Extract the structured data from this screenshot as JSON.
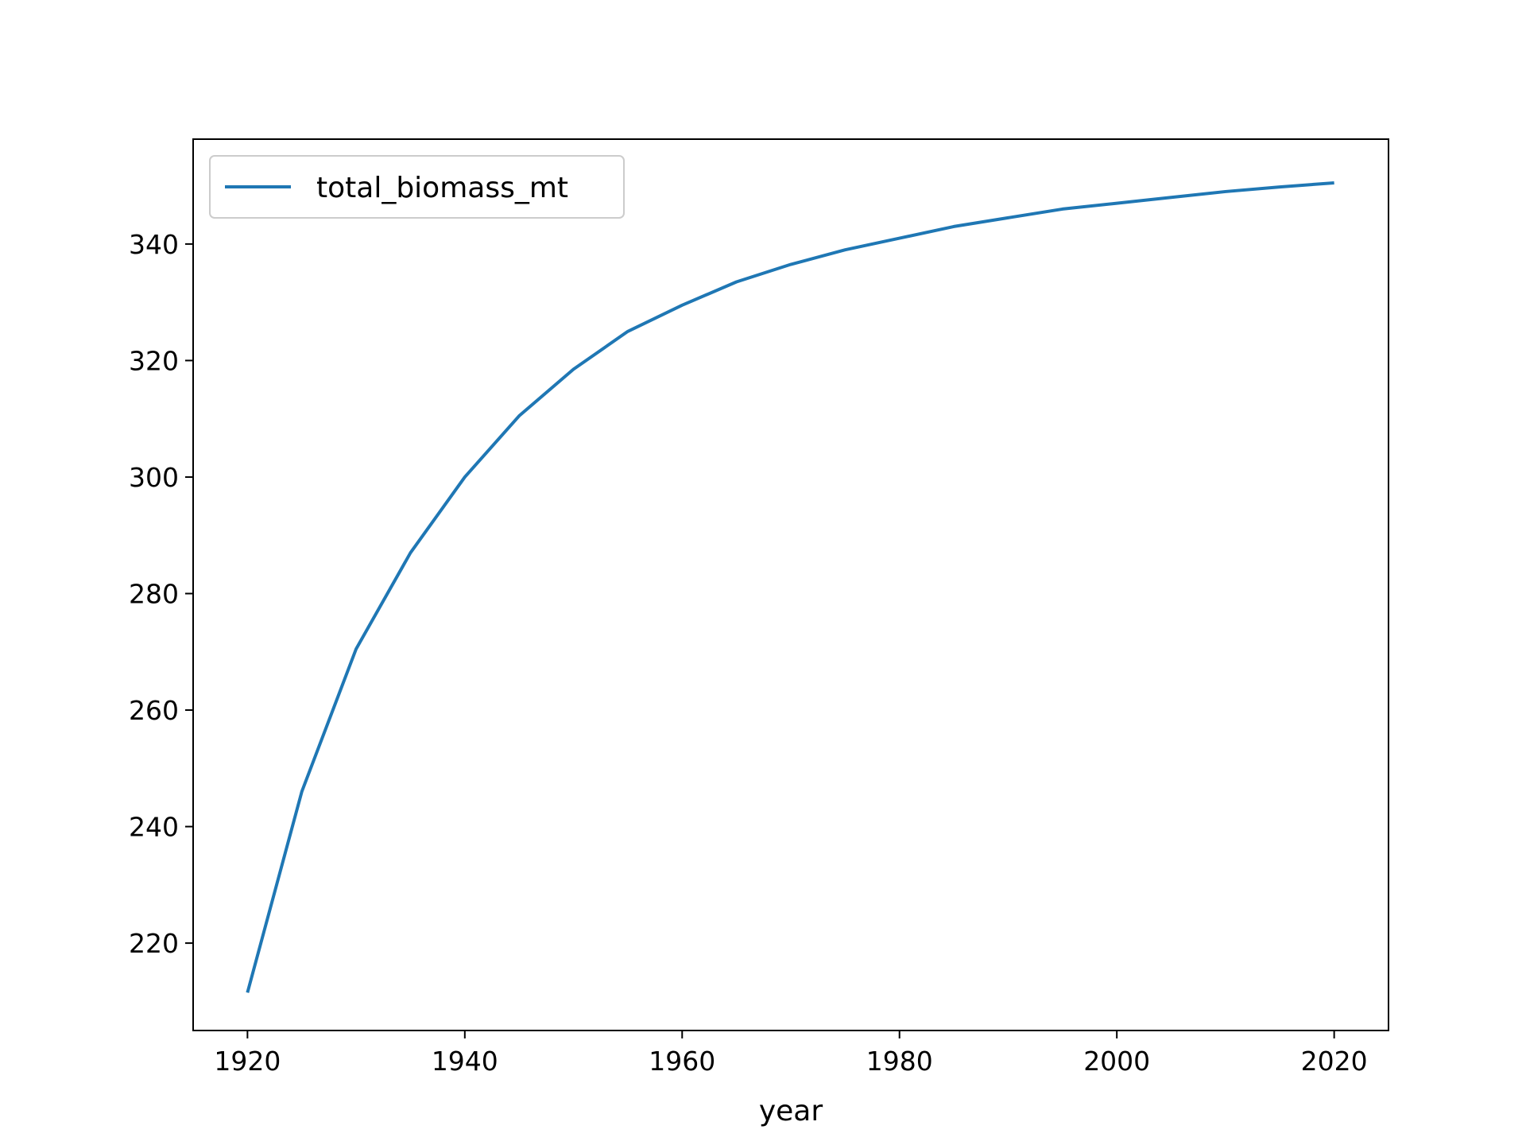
{
  "chart_data": {
    "type": "line",
    "title": "",
    "xlabel": "year",
    "ylabel": "",
    "xlim": [
      1915,
      2025
    ],
    "ylim": [
      205,
      358
    ],
    "xticks": [
      1920,
      1940,
      1960,
      1980,
      2000,
      2020
    ],
    "yticks": [
      220,
      240,
      260,
      280,
      300,
      320,
      340
    ],
    "grid": false,
    "legend": {
      "position": "top-left"
    },
    "series": [
      {
        "name": "total_biomass_mt",
        "color": "#1f77b4",
        "x": [
          1920,
          1925,
          1930,
          1935,
          1940,
          1945,
          1950,
          1955,
          1960,
          1965,
          1970,
          1975,
          1980,
          1985,
          1990,
          1995,
          2000,
          2005,
          2010,
          2015,
          2020
        ],
        "y": [
          211.5,
          246.0,
          270.5,
          287.0,
          300.0,
          310.5,
          318.5,
          325.0,
          329.5,
          333.5,
          336.5,
          339.0,
          341.0,
          343.0,
          344.5,
          346.0,
          347.0,
          348.0,
          349.0,
          349.8,
          350.5
        ]
      }
    ]
  }
}
